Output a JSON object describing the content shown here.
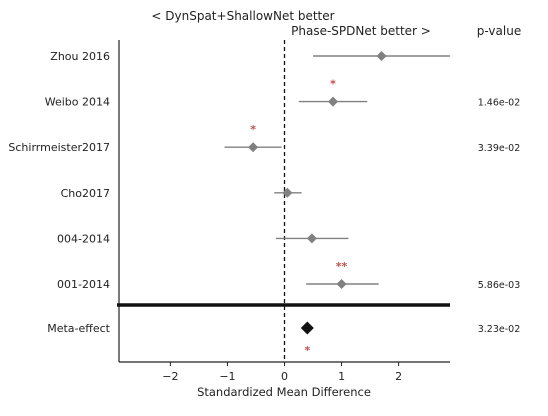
{
  "chart_data": {
    "type": "forest",
    "left_header": "< DynSpat+ShallowNet better",
    "right_header": "Phase-SPDNet better >",
    "pvalue_header": "p-value",
    "xlabel": "Standardized Mean Difference",
    "xlim": [
      -2.9,
      2.9
    ],
    "xticks": [
      -2,
      -1,
      0,
      1,
      2
    ],
    "xtick_labels": [
      "−2",
      "−1",
      "0",
      "1",
      "2"
    ],
    "reference_line": 0,
    "colors": {
      "marker": "#808080",
      "meta_marker": "#111111",
      "ci": "#808080",
      "star": "#c0504d",
      "axis": "#222222"
    },
    "studies": [
      {
        "label": "Zhou 2016",
        "smd": 1.7,
        "ci": [
          0.5,
          2.9
        ],
        "stars": "",
        "pvalue": ""
      },
      {
        "label": "Weibo 2014",
        "smd": 0.85,
        "ci": [
          0.25,
          1.45
        ],
        "stars": "*",
        "pvalue": "1.46e-02"
      },
      {
        "label": "Schirrmeister2017",
        "smd": -0.55,
        "ci": [
          -1.05,
          -0.05
        ],
        "stars": "*",
        "pvalue": "3.39e-02"
      },
      {
        "label": "Cho2017",
        "smd": 0.05,
        "ci": [
          -0.18,
          0.3
        ],
        "stars": "",
        "pvalue": ""
      },
      {
        "label": "004-2014",
        "smd": 0.48,
        "ci": [
          -0.15,
          1.12
        ],
        "stars": "",
        "pvalue": ""
      },
      {
        "label": "001-2014",
        "smd": 1.0,
        "ci": [
          0.38,
          1.65
        ],
        "stars": "**",
        "pvalue": "5.86e-03"
      }
    ],
    "meta": {
      "label": "Meta-effect",
      "smd": 0.4,
      "stars": "*",
      "pvalue": "3.23e-02"
    }
  }
}
